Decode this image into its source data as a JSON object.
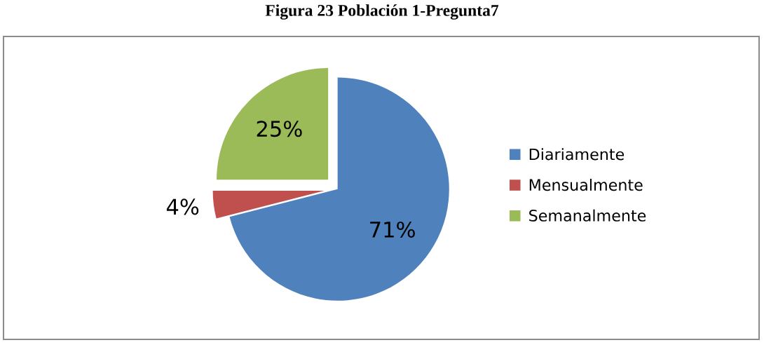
{
  "chart_data": {
    "type": "pie",
    "title": "Figura 23 Población 1-Pregunta7",
    "categories": [
      "Diariamente",
      "Mensualmente",
      "Semanalmente"
    ],
    "values": [
      71,
      4,
      25
    ],
    "colors": [
      "#4f81bd",
      "#c0504d",
      "#9bbb59"
    ],
    "value_labels": [
      "71%",
      "4%",
      "25%"
    ],
    "legend": "right"
  }
}
